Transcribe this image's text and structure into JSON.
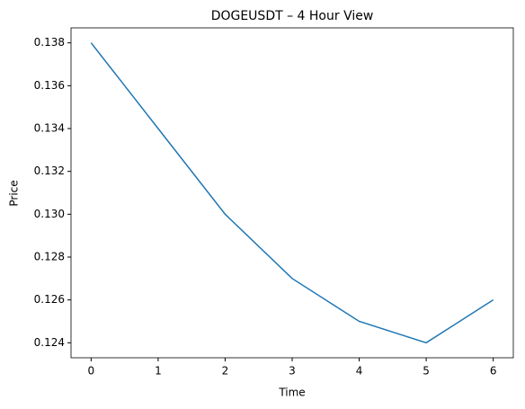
{
  "chart_data": {
    "type": "line",
    "title": "DOGEUSDT – 4 Hour View",
    "x_label": "Time",
    "y_label": "Price",
    "x": [
      0,
      1,
      2,
      3,
      4,
      5,
      6
    ],
    "series": [
      {
        "color": "#1f77b4",
        "values": [
          0.138,
          0.134,
          0.13,
          0.127,
          0.125,
          0.124,
          0.126
        ]
      }
    ],
    "xlim": [
      -0.3,
      6.3
    ],
    "xticks": [
      0,
      1,
      2,
      3,
      4,
      5,
      6
    ],
    "ylim": [
      0.1233,
      0.1387
    ],
    "yticks": [
      0.124,
      0.126,
      0.128,
      {
        "value": 0.13,
        "label": "0.130"
      },
      0.132,
      0.134,
      0.136,
      0.138
    ]
  }
}
